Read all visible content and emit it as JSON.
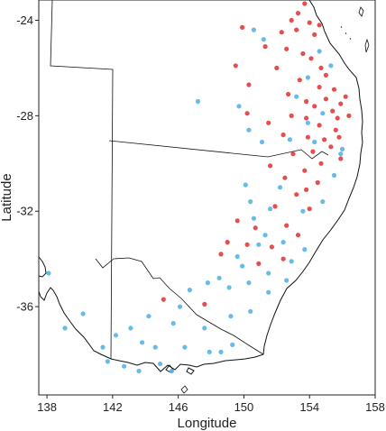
{
  "chart_data": {
    "type": "scatter",
    "xlabel": "Longitude",
    "ylabel": "Latitude",
    "xlim": [
      137.5,
      158
    ],
    "ylim": [
      -39.7,
      -23.15
    ],
    "xticks": [
      "138",
      "142",
      "146",
      "150",
      "154",
      "158"
    ],
    "yticks": [
      "-24",
      "-28",
      "-32",
      "-36"
    ],
    "grid": false,
    "legend": "none",
    "colors": {
      "red": "#e03c3c",
      "blue": "#56b4e9",
      "outline": "#111111"
    },
    "series": [
      {
        "color": "red",
        "points": [
          [
            153.7,
            -23.3
          ],
          [
            153.3,
            -23.7
          ],
          [
            152.9,
            -24.0
          ],
          [
            154.0,
            -24.1
          ],
          [
            154.6,
            -24.2
          ],
          [
            153.2,
            -24.4
          ],
          [
            149.9,
            -24.3
          ],
          [
            152.3,
            -24.5
          ],
          [
            154.3,
            -24.6
          ],
          [
            151.3,
            -25.1
          ],
          [
            152.6,
            -25.2
          ],
          [
            153.6,
            -25.4
          ],
          [
            154.1,
            -25.6
          ],
          [
            149.5,
            -25.9
          ],
          [
            152.0,
            -26.0
          ],
          [
            154.7,
            -26.0
          ],
          [
            155.0,
            -26.3
          ],
          [
            153.4,
            -26.5
          ],
          [
            150.3,
            -26.7
          ],
          [
            154.6,
            -26.8
          ],
          [
            155.5,
            -26.9
          ],
          [
            152.7,
            -27.1
          ],
          [
            155.0,
            -27.3
          ],
          [
            153.8,
            -27.4
          ],
          [
            154.3,
            -27.6
          ],
          [
            155.4,
            -27.8
          ],
          [
            150.2,
            -27.9
          ],
          [
            152.9,
            -28.0
          ],
          [
            153.8,
            -28.1
          ],
          [
            155.7,
            -28.1
          ],
          [
            151.5,
            -28.3
          ],
          [
            154.6,
            -28.4
          ],
          [
            155.6,
            -28.6
          ],
          [
            152.4,
            -28.8
          ],
          [
            153.9,
            -28.9
          ],
          [
            155.8,
            -28.9
          ],
          [
            154.9,
            -29.0
          ],
          [
            155.3,
            -29.3
          ],
          [
            154.2,
            -29.5
          ],
          [
            153.0,
            -29.6
          ],
          [
            155.9,
            -29.8
          ],
          [
            154.7,
            -30.0
          ],
          [
            151.6,
            -30.1
          ],
          [
            153.7,
            -30.3
          ],
          [
            152.5,
            -30.6
          ],
          [
            154.5,
            -30.8
          ],
          [
            153.2,
            -31.3
          ],
          [
            151.9,
            -31.8
          ],
          [
            154.0,
            -31.9
          ],
          [
            149.6,
            -32.4
          ],
          [
            152.6,
            -32.6
          ],
          [
            150.7,
            -32.7
          ],
          [
            153.3,
            -33.0
          ],
          [
            149.0,
            -33.3
          ],
          [
            150.2,
            -33.4
          ],
          [
            151.7,
            -33.5
          ],
          [
            148.6,
            -33.8
          ],
          [
            152.4,
            -34.0
          ],
          [
            150.9,
            -34.2
          ],
          [
            153.8,
            -31.1
          ],
          [
            156.2,
            -27.2
          ],
          [
            156.4,
            -28.0
          ],
          [
            155.9,
            -27.5
          ],
          [
            147.6,
            -35.9
          ],
          [
            145.1,
            -35.7
          ]
        ]
      },
      {
        "color": "blue",
        "points": [
          [
            154.6,
            -25.3
          ],
          [
            150.6,
            -24.4
          ],
          [
            151.2,
            -24.8
          ],
          [
            147.2,
            -27.4
          ],
          [
            153.9,
            -26.4
          ],
          [
            155.3,
            -25.9
          ],
          [
            149.7,
            -27.6
          ],
          [
            150.3,
            -28.6
          ],
          [
            151.1,
            -29.1
          ],
          [
            152.8,
            -29.0
          ],
          [
            154.3,
            -29.1
          ],
          [
            155.9,
            -29.6
          ],
          [
            155.5,
            -30.5
          ],
          [
            150.1,
            -30.9
          ],
          [
            152.2,
            -31.0
          ],
          [
            151.6,
            -31.9
          ],
          [
            154.8,
            -31.6
          ],
          [
            150.6,
            -32.3
          ],
          [
            153.6,
            -32.0
          ],
          [
            151.3,
            -33.0
          ],
          [
            150.9,
            -33.4
          ],
          [
            152.4,
            -33.3
          ],
          [
            153.7,
            -33.6
          ],
          [
            152.9,
            -34.1
          ],
          [
            149.9,
            -34.3
          ],
          [
            151.5,
            -34.6
          ],
          [
            148.5,
            -34.8
          ],
          [
            150.3,
            -35.0
          ],
          [
            152.6,
            -34.9
          ],
          [
            149.1,
            -35.2
          ],
          [
            147.8,
            -35.0
          ],
          [
            151.5,
            -35.4
          ],
          [
            146.7,
            -35.3
          ],
          [
            150.4,
            -36.2
          ],
          [
            149.2,
            -36.4
          ],
          [
            147.6,
            -36.9
          ],
          [
            145.7,
            -36.7
          ],
          [
            144.2,
            -36.4
          ],
          [
            143.1,
            -36.9
          ],
          [
            142.2,
            -37.2
          ],
          [
            141.4,
            -37.7
          ],
          [
            140.2,
            -36.3
          ],
          [
            139.1,
            -36.9
          ],
          [
            143.8,
            -37.5
          ],
          [
            144.6,
            -37.7
          ],
          [
            146.4,
            -37.7
          ],
          [
            147.9,
            -37.9
          ],
          [
            149.3,
            -37.6
          ],
          [
            144.9,
            -38.4
          ],
          [
            143.6,
            -38.7
          ],
          [
            142.7,
            -38.5
          ],
          [
            141.7,
            -38.3
          ],
          [
            145.6,
            -38.7
          ],
          [
            148.6,
            -37.9
          ],
          [
            156.0,
            -29.4
          ],
          [
            154.8,
            -27.9
          ],
          [
            153.2,
            -27.2
          ],
          [
            150.4,
            -31.6
          ],
          [
            149.6,
            -33.9
          ],
          [
            146.1,
            -36.0
          ],
          [
            153.9,
            -28.3
          ],
          [
            138.1,
            -34.6
          ]
        ]
      }
    ]
  }
}
